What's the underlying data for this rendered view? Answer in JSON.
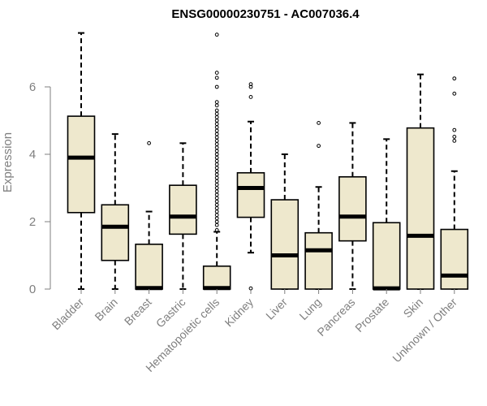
{
  "chart_data": {
    "type": "box",
    "title": "ENSG00000230751 - AC007036.4",
    "xlabel": "",
    "ylabel": "Expression",
    "ylim": [
      0,
      7.7
    ],
    "yticks": [
      0,
      2,
      4,
      6
    ],
    "colors": {
      "box_fill": "#EEE8CD",
      "stroke": "#000000",
      "axis": "#7f7f7f"
    },
    "categories": [
      "Bladder",
      "Brain",
      "Breast",
      "Gastric",
      "Hematopoietic cells",
      "Kidney",
      "Liver",
      "Lung",
      "Pancreas",
      "Prostate",
      "Skin",
      "Unknown / Other"
    ],
    "boxes": [
      {
        "category": "Bladder",
        "whisker_low": 0,
        "q1": 2.27,
        "median": 3.9,
        "q3": 5.13,
        "whisker_high": 7.6,
        "outliers": []
      },
      {
        "category": "Brain",
        "whisker_low": 0,
        "q1": 0.85,
        "median": 1.85,
        "q3": 2.5,
        "whisker_high": 4.6,
        "outliers": []
      },
      {
        "category": "Breast",
        "whisker_low": 0,
        "q1": 0,
        "median": 0.03,
        "q3": 1.33,
        "whisker_high": 2.3,
        "outliers": [
          4.33
        ]
      },
      {
        "category": "Gastric",
        "whisker_low": 0,
        "q1": 1.63,
        "median": 2.15,
        "q3": 3.08,
        "whisker_high": 4.33,
        "outliers": []
      },
      {
        "category": "Hematopoietic cells",
        "whisker_low": 0,
        "q1": 0,
        "median": 0.03,
        "q3": 0.68,
        "whisker_high": 1.7,
        "outliers": [
          1.75,
          1.9,
          2.0,
          2.1,
          2.2,
          2.3,
          2.4,
          2.5,
          2.6,
          2.7,
          2.8,
          2.9,
          3.0,
          3.1,
          3.2,
          3.3,
          3.4,
          3.5,
          3.6,
          3.7,
          3.8,
          3.9,
          4.0,
          4.1,
          4.2,
          4.3,
          4.4,
          4.5,
          4.6,
          4.7,
          4.8,
          4.9,
          5.0,
          5.1,
          5.2,
          5.3,
          5.45,
          5.55,
          6.0,
          6.27,
          6.42,
          7.55
        ]
      },
      {
        "category": "Kidney",
        "whisker_low": 1.08,
        "q1": 2.13,
        "median": 3.0,
        "q3": 3.45,
        "whisker_high": 4.97,
        "outliers": [
          0.02,
          5.7,
          6.0,
          6.08
        ]
      },
      {
        "category": "Liver",
        "whisker_low": 0,
        "q1": 0,
        "median": 1.0,
        "q3": 2.65,
        "whisker_high": 4.0,
        "outliers": []
      },
      {
        "category": "Lung",
        "whisker_low": 0,
        "q1": 0,
        "median": 1.15,
        "q3": 1.67,
        "whisker_high": 3.03,
        "outliers": [
          4.25,
          4.93
        ]
      },
      {
        "category": "Pancreas",
        "whisker_low": 0,
        "q1": 1.43,
        "median": 2.15,
        "q3": 3.33,
        "whisker_high": 4.93,
        "outliers": []
      },
      {
        "category": "Prostate",
        "whisker_low": 0,
        "q1": 0,
        "median": 0.02,
        "q3": 1.97,
        "whisker_high": 4.45,
        "outliers": []
      },
      {
        "category": "Skin",
        "whisker_low": 0,
        "q1": 0,
        "median": 1.58,
        "q3": 4.78,
        "whisker_high": 6.37,
        "outliers": []
      },
      {
        "category": "Unknown / Other",
        "whisker_low": 0,
        "q1": 0,
        "median": 0.4,
        "q3": 1.77,
        "whisker_high": 3.5,
        "outliers": [
          4.4,
          4.52,
          4.72,
          5.8,
          6.25
        ]
      }
    ]
  }
}
